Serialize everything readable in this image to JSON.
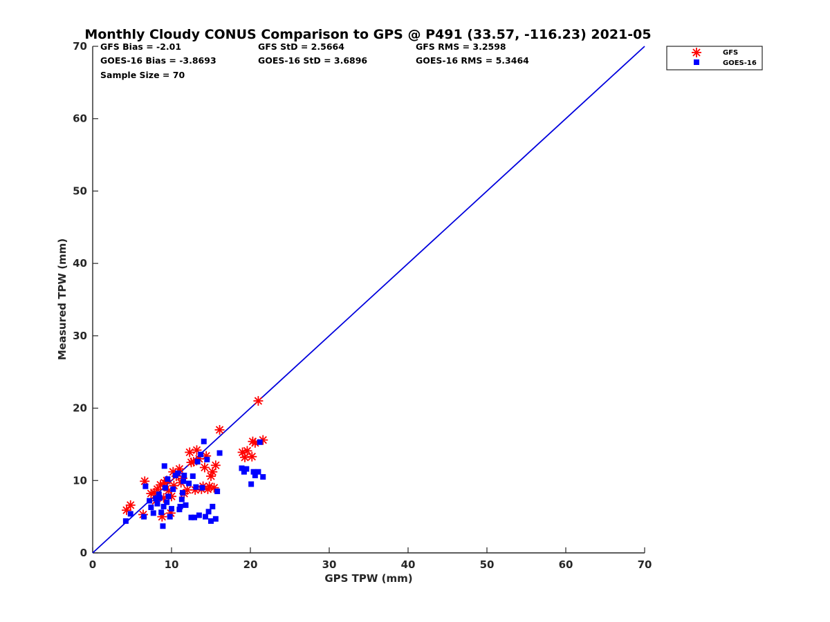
{
  "chart_data": {
    "type": "scatter",
    "title": "Monthly Cloudy CONUS Comparison to GPS @ P491 (33.57, -116.23) 2021-05",
    "xlabel": "GPS TPW (mm)",
    "ylabel": "Measured TPW (mm)",
    "xlim": [
      0,
      70
    ],
    "ylim": [
      0,
      70
    ],
    "xticks": [
      "0",
      "10",
      "20",
      "30",
      "40",
      "50",
      "60",
      "70"
    ],
    "yticks": [
      "0",
      "10",
      "20",
      "30",
      "40",
      "50",
      "60",
      "70"
    ],
    "grid": false,
    "legend_position": "outside-top-right",
    "stats": [
      [
        "GFS Bias = -2.01",
        "GFS StD = 2.5664",
        "GFS RMS = 3.2598"
      ],
      [
        "GOES-16 Bias = -3.8693",
        "GOES-16 StD = 3.6896",
        "GOES-16 RMS = 5.3464"
      ],
      [
        "Sample Size = 70"
      ]
    ],
    "reference_line": {
      "name": "1:1",
      "color": "#0000dd",
      "x": [
        0,
        70
      ],
      "y": [
        0,
        70
      ]
    },
    "series": [
      {
        "name": "GFS",
        "marker": "asterisk",
        "color": "#ff0000",
        "points": [
          [
            4.3,
            5.9
          ],
          [
            4.8,
            6.6
          ],
          [
            6.4,
            5.3
          ],
          [
            6.6,
            9.9
          ],
          [
            7.4,
            8.2
          ],
          [
            7.8,
            8.3
          ],
          [
            8.0,
            7.2
          ],
          [
            8.2,
            8.8
          ],
          [
            8.6,
            9.4
          ],
          [
            8.8,
            5.0
          ],
          [
            9.0,
            7.6
          ],
          [
            9.1,
            9.7
          ],
          [
            9.4,
            10.0
          ],
          [
            9.6,
            8.6
          ],
          [
            9.9,
            5.5
          ],
          [
            10.0,
            7.8
          ],
          [
            10.2,
            11.2
          ],
          [
            10.3,
            9.3
          ],
          [
            10.6,
            10.6
          ],
          [
            10.8,
            11.0
          ],
          [
            11.0,
            11.6
          ],
          [
            11.2,
            9.7
          ],
          [
            11.4,
            10.3
          ],
          [
            11.6,
            8.2
          ],
          [
            12.0,
            8.7
          ],
          [
            12.3,
            13.9
          ],
          [
            12.5,
            12.5
          ],
          [
            12.8,
            12.6
          ],
          [
            13.0,
            8.7
          ],
          [
            13.2,
            14.2
          ],
          [
            13.5,
            13.0
          ],
          [
            13.8,
            8.8
          ],
          [
            14.0,
            9.2
          ],
          [
            14.2,
            11.8
          ],
          [
            14.4,
            13.4
          ],
          [
            14.6,
            8.8
          ],
          [
            14.8,
            9.2
          ],
          [
            15.0,
            10.6
          ],
          [
            15.2,
            11.2
          ],
          [
            15.4,
            9.0
          ],
          [
            15.6,
            12.1
          ],
          [
            16.1,
            17.0
          ],
          [
            19.0,
            13.9
          ],
          [
            19.3,
            13.2
          ],
          [
            19.6,
            14.1
          ],
          [
            20.2,
            13.3
          ],
          [
            20.3,
            15.4
          ],
          [
            20.6,
            15.2
          ],
          [
            21.0,
            21.0
          ],
          [
            21.6,
            15.6
          ]
        ]
      },
      {
        "name": "GOES-16",
        "marker": "square",
        "color": "#0000ff",
        "points": [
          [
            4.2,
            4.4
          ],
          [
            4.8,
            5.4
          ],
          [
            6.5,
            5.0
          ],
          [
            6.7,
            9.2
          ],
          [
            7.2,
            7.2
          ],
          [
            7.4,
            6.3
          ],
          [
            7.7,
            5.5
          ],
          [
            8.0,
            7.5
          ],
          [
            8.2,
            6.8
          ],
          [
            8.4,
            8.1
          ],
          [
            8.5,
            7.6
          ],
          [
            8.7,
            5.6
          ],
          [
            8.9,
            3.7
          ],
          [
            9.0,
            6.4
          ],
          [
            9.1,
            12.0
          ],
          [
            9.2,
            9.0
          ],
          [
            9.4,
            7.0
          ],
          [
            9.5,
            10.2
          ],
          [
            9.6,
            7.8
          ],
          [
            9.8,
            5.0
          ],
          [
            10.0,
            6.1
          ],
          [
            10.2,
            8.8
          ],
          [
            10.5,
            10.7
          ],
          [
            10.8,
            11.0
          ],
          [
            11.0,
            6.0
          ],
          [
            11.1,
            6.4
          ],
          [
            11.3,
            7.4
          ],
          [
            11.4,
            8.3
          ],
          [
            11.5,
            9.9
          ],
          [
            11.6,
            10.7
          ],
          [
            11.8,
            6.6
          ],
          [
            12.2,
            9.6
          ],
          [
            12.5,
            4.9
          ],
          [
            12.7,
            10.6
          ],
          [
            12.9,
            4.9
          ],
          [
            13.1,
            9.1
          ],
          [
            13.3,
            12.6
          ],
          [
            13.5,
            5.2
          ],
          [
            13.7,
            13.6
          ],
          [
            13.9,
            9.0
          ],
          [
            14.1,
            15.4
          ],
          [
            14.3,
            5.0
          ],
          [
            14.5,
            12.9
          ],
          [
            14.7,
            5.7
          ],
          [
            15.0,
            4.4
          ],
          [
            15.2,
            6.4
          ],
          [
            15.6,
            4.7
          ],
          [
            15.8,
            8.5
          ],
          [
            16.1,
            13.8
          ],
          [
            18.9,
            11.7
          ],
          [
            19.2,
            11.2
          ],
          [
            19.5,
            11.6
          ],
          [
            20.1,
            9.5
          ],
          [
            20.4,
            11.2
          ],
          [
            20.6,
            10.7
          ],
          [
            21.0,
            11.2
          ],
          [
            21.2,
            15.3
          ],
          [
            21.6,
            10.5
          ]
        ]
      }
    ]
  }
}
